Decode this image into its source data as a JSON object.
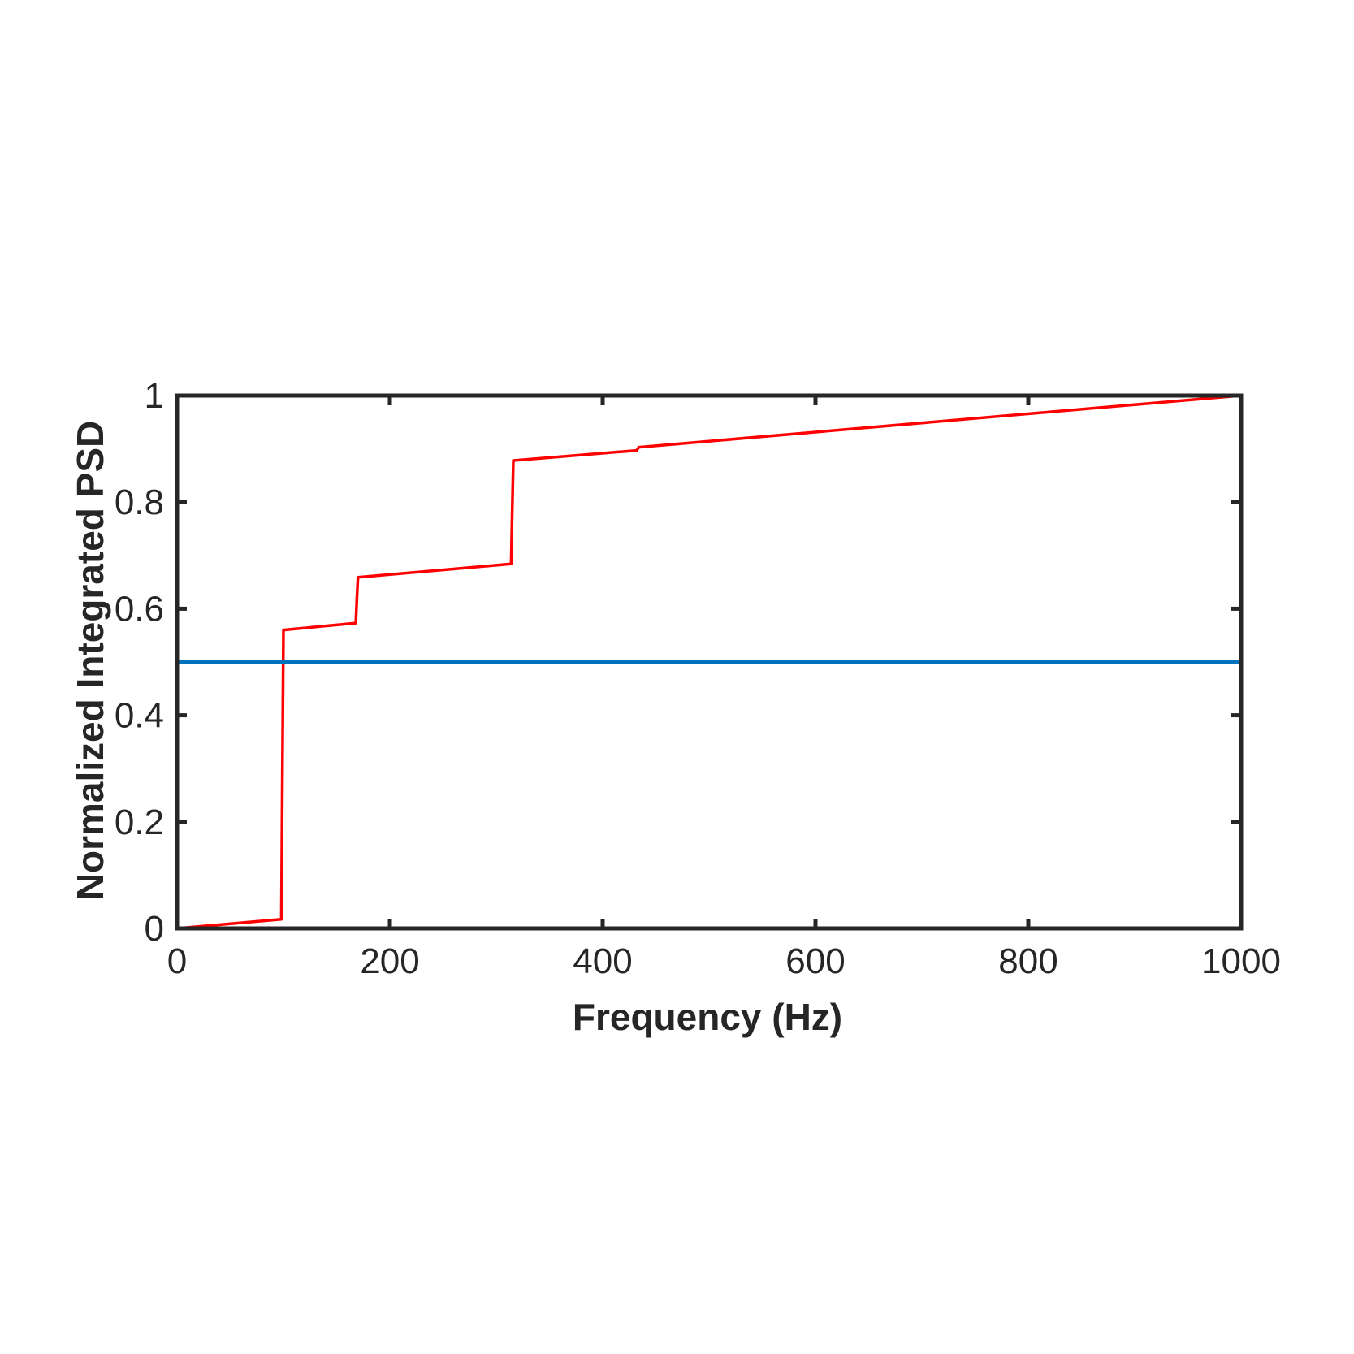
{
  "chart_data": {
    "type": "line",
    "title": "",
    "xlabel": "Frequency (Hz)",
    "ylabel": "Normalized Integrated PSD",
    "xlim": [
      0,
      1000
    ],
    "ylim": [
      0,
      1
    ],
    "xticks": [
      0,
      200,
      400,
      600,
      800,
      1000
    ],
    "xtick_labels": [
      "0",
      "200",
      "400",
      "600",
      "800",
      "1000"
    ],
    "yticks": [
      0,
      0.2,
      0.4,
      0.6,
      0.8,
      1
    ],
    "ytick_labels": [
      "0",
      "0.2",
      "0.4",
      "0.6",
      "0.8",
      "1"
    ],
    "grid": false,
    "box": true,
    "series": [
      {
        "color": "#ff0000",
        "x": [
          0,
          98,
          99,
          100,
          168,
          169,
          170,
          314,
          315,
          316,
          432,
          434,
          1000
        ],
        "y": [
          0,
          0.017,
          0.3,
          0.56,
          0.573,
          0.62,
          0.659,
          0.684,
          0.78,
          0.878,
          0.897,
          0.903,
          1.0
        ]
      },
      {
        "color": "#0072bd",
        "x": [
          0,
          1000
        ],
        "y": [
          0.5,
          0.5
        ]
      }
    ]
  }
}
